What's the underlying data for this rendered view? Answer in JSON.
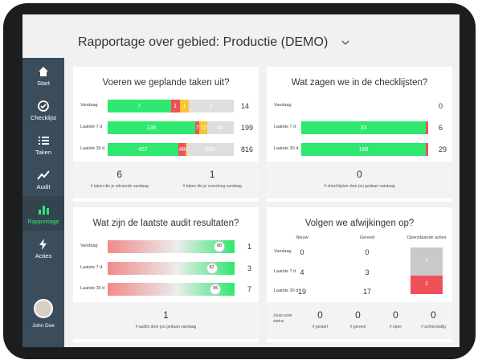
{
  "header": {
    "title": "Rapportage over gebied: Productie (DEMO)"
  },
  "sidebar": {
    "items": [
      "Start",
      "Checklijst",
      "Taken",
      "Audit",
      "Rapportage",
      "Acties"
    ],
    "active": 4,
    "user": "John Doe"
  },
  "tasks": {
    "title": "Voeren we geplande taken uit?",
    "rows": [
      {
        "label": "Vandaag",
        "done": 7,
        "failed": 1,
        "skipped": 1,
        "open": 5,
        "total": 14
      },
      {
        "label": "Laatste 7 d",
        "done": 138,
        "failed": 7,
        "skipped": 12,
        "open": 42,
        "total": 199
      },
      {
        "label": "Laatste 30 d",
        "done": 457,
        "failed": 48,
        "skipped": 8,
        "open": 303,
        "total": 816
      }
    ],
    "footer": [
      {
        "value": 6,
        "label": "# taken die je uitvoerde vandaag"
      },
      {
        "value": 1,
        "label": "# taken die je oversloeg vandaag"
      }
    ]
  },
  "checklists": {
    "title": "Wat zagen we in de checklijsten?",
    "rows": [
      {
        "label": "Vandaag",
        "issues": 0
      },
      {
        "label": "Laatste 7 d",
        "passed": 33,
        "issues": 6
      },
      {
        "label": "Laatste 30 d",
        "passed": 168,
        "issues": 29
      }
    ],
    "footer": [
      {
        "value": 0,
        "label": "# checklijsten door jou gedaan vandaag"
      }
    ]
  },
  "audits": {
    "title": "Wat zijn de laatste audit resultaten?",
    "rows": [
      {
        "label": "Vandaag",
        "score": 88,
        "count": 1
      },
      {
        "label": "Laatste 7 d",
        "score": 82,
        "count": 3
      },
      {
        "label": "Laatste 30 d",
        "score": 85,
        "count": 7
      }
    ],
    "footer": [
      {
        "value": 1,
        "label": "# audits door jou gedaan vandaag"
      }
    ]
  },
  "deviations": {
    "title": "Volgen we afwijkingen op?",
    "columns": [
      "Nieuw",
      "Gereed",
      "Openstaande acties"
    ],
    "rows": [
      {
        "label": "Vandaag",
        "new": 0,
        "done": 0
      },
      {
        "label": "Laatste 7 d",
        "new": 4,
        "done": 3
      },
      {
        "label": "Laatste 30 d",
        "new": 19,
        "done": 17
      }
    ],
    "open": {
      "pending": 3,
      "overdue": 2
    },
    "footer": {
      "label": "Jouw actie status",
      "items": [
        {
          "value": 0,
          "label": "# gestart"
        },
        {
          "value": 0,
          "label": "# gereed"
        },
        {
          "value": 0,
          "label": "# open"
        },
        {
          "value": 0,
          "label": "# achterstallig"
        }
      ]
    }
  }
}
